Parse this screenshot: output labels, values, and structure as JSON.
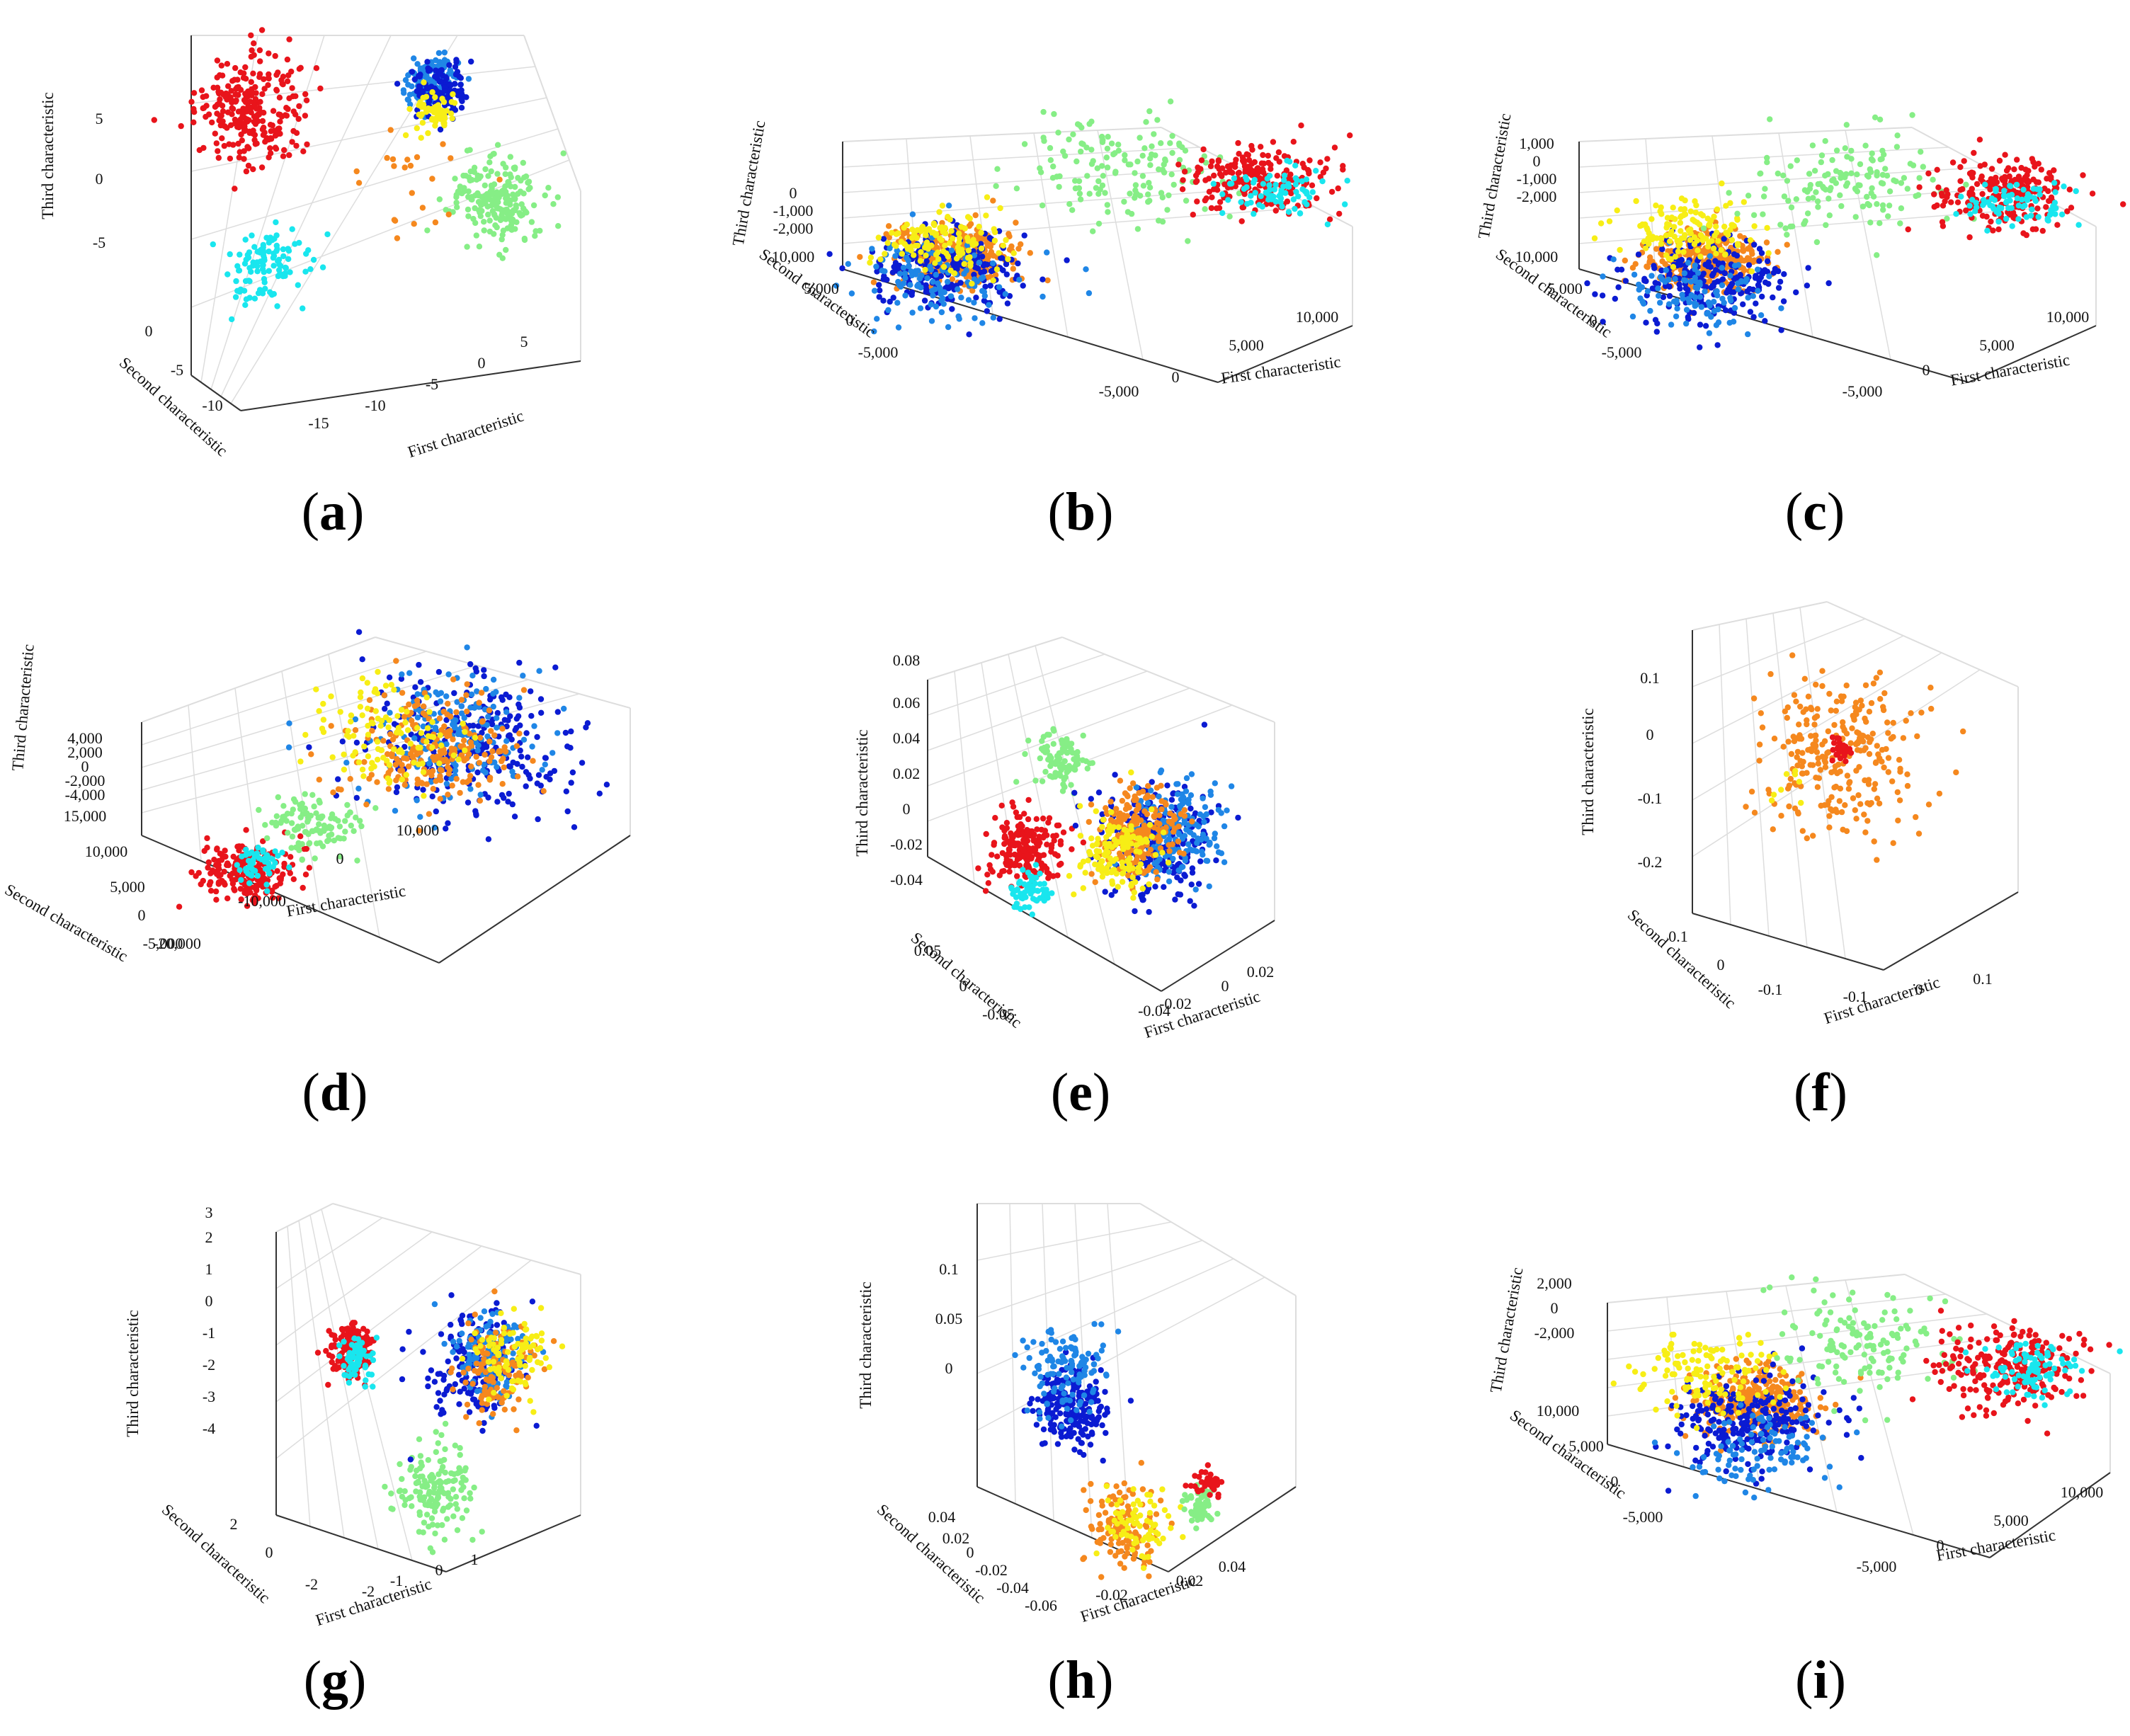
{
  "colors": {
    "red": "#e8141b",
    "cyan": "#19e6ee",
    "green": "#86ee86",
    "orange": "#f5881e",
    "yellow": "#f7ee16",
    "blue": "#1f86e6",
    "navy": "#0b1bd2",
    "axis": "#333333",
    "grid": "#dddddd"
  },
  "chart_data": [
    {
      "id": "a",
      "type": "scatter",
      "caption_open": "(",
      "caption_letter": "a",
      "caption_close": ")",
      "xlabel": "First characteristic",
      "ylabel": "Second characteristic",
      "zlabel": "Third characteristic",
      "xticks": [
        "-15",
        "-10",
        "-5",
        "0",
        "5"
      ],
      "yticks": [
        "0",
        "-5",
        "-10"
      ],
      "zticks": [
        "5",
        "0",
        "-5"
      ],
      "clusters": [
        {
          "color": "red",
          "u": 0.15,
          "v": 0.2,
          "spread": 0.07,
          "n": 260
        },
        {
          "color": "cyan",
          "u": 0.2,
          "v": 0.62,
          "spread": 0.05,
          "n": 110
        },
        {
          "color": "green",
          "u": 0.78,
          "v": 0.44,
          "spread": 0.06,
          "n": 200
        },
        {
          "color": "blue",
          "u": 0.62,
          "v": 0.12,
          "spread": 0.035,
          "n": 150
        },
        {
          "color": "navy",
          "u": 0.64,
          "v": 0.14,
          "spread": 0.035,
          "n": 120
        },
        {
          "color": "yellow",
          "u": 0.63,
          "v": 0.2,
          "spread": 0.025,
          "n": 60
        },
        {
          "color": "orange",
          "u": 0.58,
          "v": 0.38,
          "spread": 0.08,
          "n": 22
        }
      ]
    },
    {
      "id": "b",
      "type": "scatter",
      "caption_open": "(",
      "caption_letter": "b",
      "caption_close": ")",
      "xlabel": "First characteristic",
      "ylabel": "Second characteristic",
      "zlabel": "Third characteristic",
      "xticks": [
        "-5,000",
        "0",
        "5,000",
        "10,000"
      ],
      "yticks": [
        "10,000",
        "5,000",
        "0",
        "-5,000"
      ],
      "zticks": [
        "0",
        "-1,000",
        "-2,000"
      ],
      "clusters": [
        {
          "color": "orange",
          "u": 0.22,
          "v": 0.5,
          "spread": 0.06,
          "n": 320
        },
        {
          "color": "navy",
          "u": 0.2,
          "v": 0.55,
          "spread": 0.08,
          "n": 220
        },
        {
          "color": "blue",
          "u": 0.18,
          "v": 0.6,
          "spread": 0.08,
          "n": 120
        },
        {
          "color": "yellow",
          "u": 0.2,
          "v": 0.45,
          "spread": 0.06,
          "n": 120
        },
        {
          "color": "green",
          "u": 0.55,
          "v": 0.18,
          "spread": 0.1,
          "n": 150
        },
        {
          "color": "red",
          "u": 0.82,
          "v": 0.2,
          "spread": 0.07,
          "n": 220
        },
        {
          "color": "cyan",
          "u": 0.85,
          "v": 0.25,
          "spread": 0.05,
          "n": 80
        }
      ]
    },
    {
      "id": "c",
      "type": "scatter",
      "caption_open": "(",
      "caption_letter": "c",
      "caption_close": ")",
      "xlabel": "First characteristic",
      "ylabel": "Second characteristic",
      "zlabel": "Third characteristic",
      "xticks": [
        "-5,000",
        "0",
        "5,000",
        "10,000"
      ],
      "yticks": [
        "10,000",
        "5,000",
        "0",
        "-5,000"
      ],
      "zticks": [
        "1,000",
        "0",
        "-1,000",
        "-2,000"
      ],
      "clusters": [
        {
          "color": "orange",
          "u": 0.25,
          "v": 0.52,
          "spread": 0.06,
          "n": 320
        },
        {
          "color": "navy",
          "u": 0.25,
          "v": 0.6,
          "spread": 0.08,
          "n": 220
        },
        {
          "color": "blue",
          "u": 0.22,
          "v": 0.65,
          "spread": 0.07,
          "n": 100
        },
        {
          "color": "yellow",
          "u": 0.2,
          "v": 0.4,
          "spread": 0.06,
          "n": 130
        },
        {
          "color": "green",
          "u": 0.52,
          "v": 0.22,
          "spread": 0.1,
          "n": 150
        },
        {
          "color": "red",
          "u": 0.82,
          "v": 0.25,
          "spread": 0.07,
          "n": 220
        },
        {
          "color": "cyan",
          "u": 0.85,
          "v": 0.3,
          "spread": 0.05,
          "n": 80
        }
      ]
    },
    {
      "id": "d",
      "type": "scatter",
      "caption_open": "(",
      "caption_letter": "d",
      "caption_close": ")",
      "xlabel": "First characteristic",
      "ylabel": "Second characteristic",
      "zlabel": "Third characteristic",
      "xticks": [
        "-20,000",
        "-10,000",
        "0",
        "10,000"
      ],
      "yticks": [
        "15,000",
        "10,000",
        "5,000",
        "0",
        "-5,000"
      ],
      "zticks": [
        "4,000",
        "2,000",
        "0",
        "-2,000",
        "-4,000"
      ],
      "clusters": [
        {
          "color": "red",
          "u": 0.22,
          "v": 0.72,
          "spread": 0.05,
          "n": 200
        },
        {
          "color": "cyan",
          "u": 0.24,
          "v": 0.7,
          "spread": 0.03,
          "n": 50
        },
        {
          "color": "green",
          "u": 0.35,
          "v": 0.58,
          "spread": 0.05,
          "n": 110
        },
        {
          "color": "navy",
          "u": 0.66,
          "v": 0.33,
          "spread": 0.11,
          "n": 280
        },
        {
          "color": "blue",
          "u": 0.62,
          "v": 0.3,
          "spread": 0.1,
          "n": 180
        },
        {
          "color": "orange",
          "u": 0.6,
          "v": 0.35,
          "spread": 0.09,
          "n": 220
        },
        {
          "color": "yellow",
          "u": 0.5,
          "v": 0.3,
          "spread": 0.08,
          "n": 110
        }
      ]
    },
    {
      "id": "e",
      "type": "scatter",
      "caption_open": "(",
      "caption_letter": "e",
      "caption_close": ")",
      "xlabel": "First characteristic",
      "ylabel": "Second characteristic",
      "zlabel": "Third characteristic",
      "xticks": [
        "-0.04",
        "-0.02",
        "0",
        "0.02"
      ],
      "yticks": [
        "0.05",
        "0",
        "-0.05"
      ],
      "zticks": [
        "0.08",
        "0.06",
        "0.04",
        "0.02",
        "0",
        "-0.02",
        "-0.04"
      ],
      "clusters": [
        {
          "color": "red",
          "u": 0.28,
          "v": 0.6,
          "spread": 0.05,
          "n": 200
        },
        {
          "color": "cyan",
          "u": 0.3,
          "v": 0.72,
          "spread": 0.03,
          "n": 60
        },
        {
          "color": "green",
          "u": 0.38,
          "v": 0.35,
          "spread": 0.04,
          "n": 90
        },
        {
          "color": "navy",
          "u": 0.65,
          "v": 0.58,
          "spread": 0.08,
          "n": 260
        },
        {
          "color": "blue",
          "u": 0.72,
          "v": 0.55,
          "spread": 0.07,
          "n": 160
        },
        {
          "color": "orange",
          "u": 0.6,
          "v": 0.55,
          "spread": 0.06,
          "n": 220
        },
        {
          "color": "yellow",
          "u": 0.55,
          "v": 0.6,
          "spread": 0.06,
          "n": 130
        }
      ]
    },
    {
      "id": "f",
      "type": "scatter",
      "caption_open": "(",
      "caption_letter": "f",
      "caption_close": ")",
      "xlabel": "First characteristic",
      "ylabel": "Second characteristic",
      "zlabel": "Third characteristic",
      "xticks": [
        "-0.1",
        "0",
        "0.1"
      ],
      "yticks": [
        "0.1",
        "0",
        "-0.1"
      ],
      "zticks": [
        "0.1",
        "0",
        "-0.1",
        "-0.2"
      ],
      "clusters": [
        {
          "color": "orange",
          "u": 0.45,
          "v": 0.42,
          "spread": 0.12,
          "n": 260
        },
        {
          "color": "red",
          "u": 0.46,
          "v": 0.4,
          "spread": 0.015,
          "n": 30
        },
        {
          "color": "yellow",
          "u": 0.3,
          "v": 0.5,
          "spread": 0.03,
          "n": 8
        }
      ]
    },
    {
      "id": "g",
      "type": "scatter",
      "caption_open": "(",
      "caption_letter": "g",
      "caption_close": ")",
      "xlabel": "First characteristic",
      "ylabel": "Second characteristic",
      "zlabel": "Third characteristic",
      "xticks": [
        "-2",
        "-1",
        "0",
        "1"
      ],
      "yticks": [
        "2",
        "0",
        "-2"
      ],
      "zticks": [
        "3",
        "2",
        "1",
        "0",
        "-1",
        "-2",
        "-3",
        "-4"
      ],
      "clusters": [
        {
          "color": "red",
          "u": 0.25,
          "v": 0.4,
          "spread": 0.04,
          "n": 150
        },
        {
          "color": "cyan",
          "u": 0.27,
          "v": 0.42,
          "spread": 0.03,
          "n": 60
        },
        {
          "color": "green",
          "u": 0.52,
          "v": 0.78,
          "spread": 0.06,
          "n": 150
        },
        {
          "color": "navy",
          "u": 0.65,
          "v": 0.45,
          "spread": 0.08,
          "n": 180
        },
        {
          "color": "blue",
          "u": 0.7,
          "v": 0.4,
          "spread": 0.06,
          "n": 120
        },
        {
          "color": "orange",
          "u": 0.72,
          "v": 0.45,
          "spread": 0.07,
          "n": 110
        },
        {
          "color": "yellow",
          "u": 0.78,
          "v": 0.42,
          "spread": 0.06,
          "n": 90
        }
      ]
    },
    {
      "id": "h",
      "type": "scatter",
      "caption_open": "(",
      "caption_letter": "h",
      "caption_close": ")",
      "xlabel": "First characteristic",
      "ylabel": "Second characteristic",
      "zlabel": "Third characteristic",
      "xticks": [
        "-0.02",
        "0.02",
        "0.04"
      ],
      "yticks": [
        "0.04",
        "0.02",
        "0",
        "-0.02",
        "-0.04",
        "-0.06"
      ],
      "zticks": [
        "0.1",
        "0.05",
        "0"
      ],
      "clusters": [
        {
          "color": "navy",
          "u": 0.3,
          "v": 0.55,
          "spread": 0.06,
          "n": 200
        },
        {
          "color": "blue",
          "u": 0.28,
          "v": 0.45,
          "spread": 0.06,
          "n": 120
        },
        {
          "color": "orange",
          "u": 0.45,
          "v": 0.88,
          "spread": 0.06,
          "n": 130
        },
        {
          "color": "yellow",
          "u": 0.5,
          "v": 0.86,
          "spread": 0.05,
          "n": 70
        },
        {
          "color": "green",
          "u": 0.7,
          "v": 0.82,
          "spread": 0.03,
          "n": 50
        },
        {
          "color": "red",
          "u": 0.72,
          "v": 0.76,
          "spread": 0.02,
          "n": 35
        }
      ]
    },
    {
      "id": "i",
      "type": "scatter",
      "caption_open": "(",
      "caption_letter": "i",
      "caption_close": ")",
      "xlabel": "First characteristic",
      "ylabel": "Second characteristic",
      "zlabel": "Third characteristic",
      "xticks": [
        "-5,000",
        "0",
        "5,000",
        "10,000"
      ],
      "yticks": [
        "10,000",
        "5,000",
        "0",
        "-5,000"
      ],
      "zticks": [
        "2,000",
        "0",
        "-2,000"
      ],
      "clusters": [
        {
          "color": "orange",
          "u": 0.3,
          "v": 0.45,
          "spread": 0.06,
          "n": 300
        },
        {
          "color": "navy",
          "u": 0.28,
          "v": 0.52,
          "spread": 0.08,
          "n": 220
        },
        {
          "color": "blue",
          "u": 0.3,
          "v": 0.62,
          "spread": 0.07,
          "n": 100
        },
        {
          "color": "yellow",
          "u": 0.2,
          "v": 0.35,
          "spread": 0.07,
          "n": 120
        },
        {
          "color": "green",
          "u": 0.5,
          "v": 0.25,
          "spread": 0.09,
          "n": 140
        },
        {
          "color": "red",
          "u": 0.8,
          "v": 0.32,
          "spread": 0.08,
          "n": 230
        },
        {
          "color": "cyan",
          "u": 0.85,
          "v": 0.34,
          "spread": 0.05,
          "n": 90
        }
      ]
    }
  ]
}
